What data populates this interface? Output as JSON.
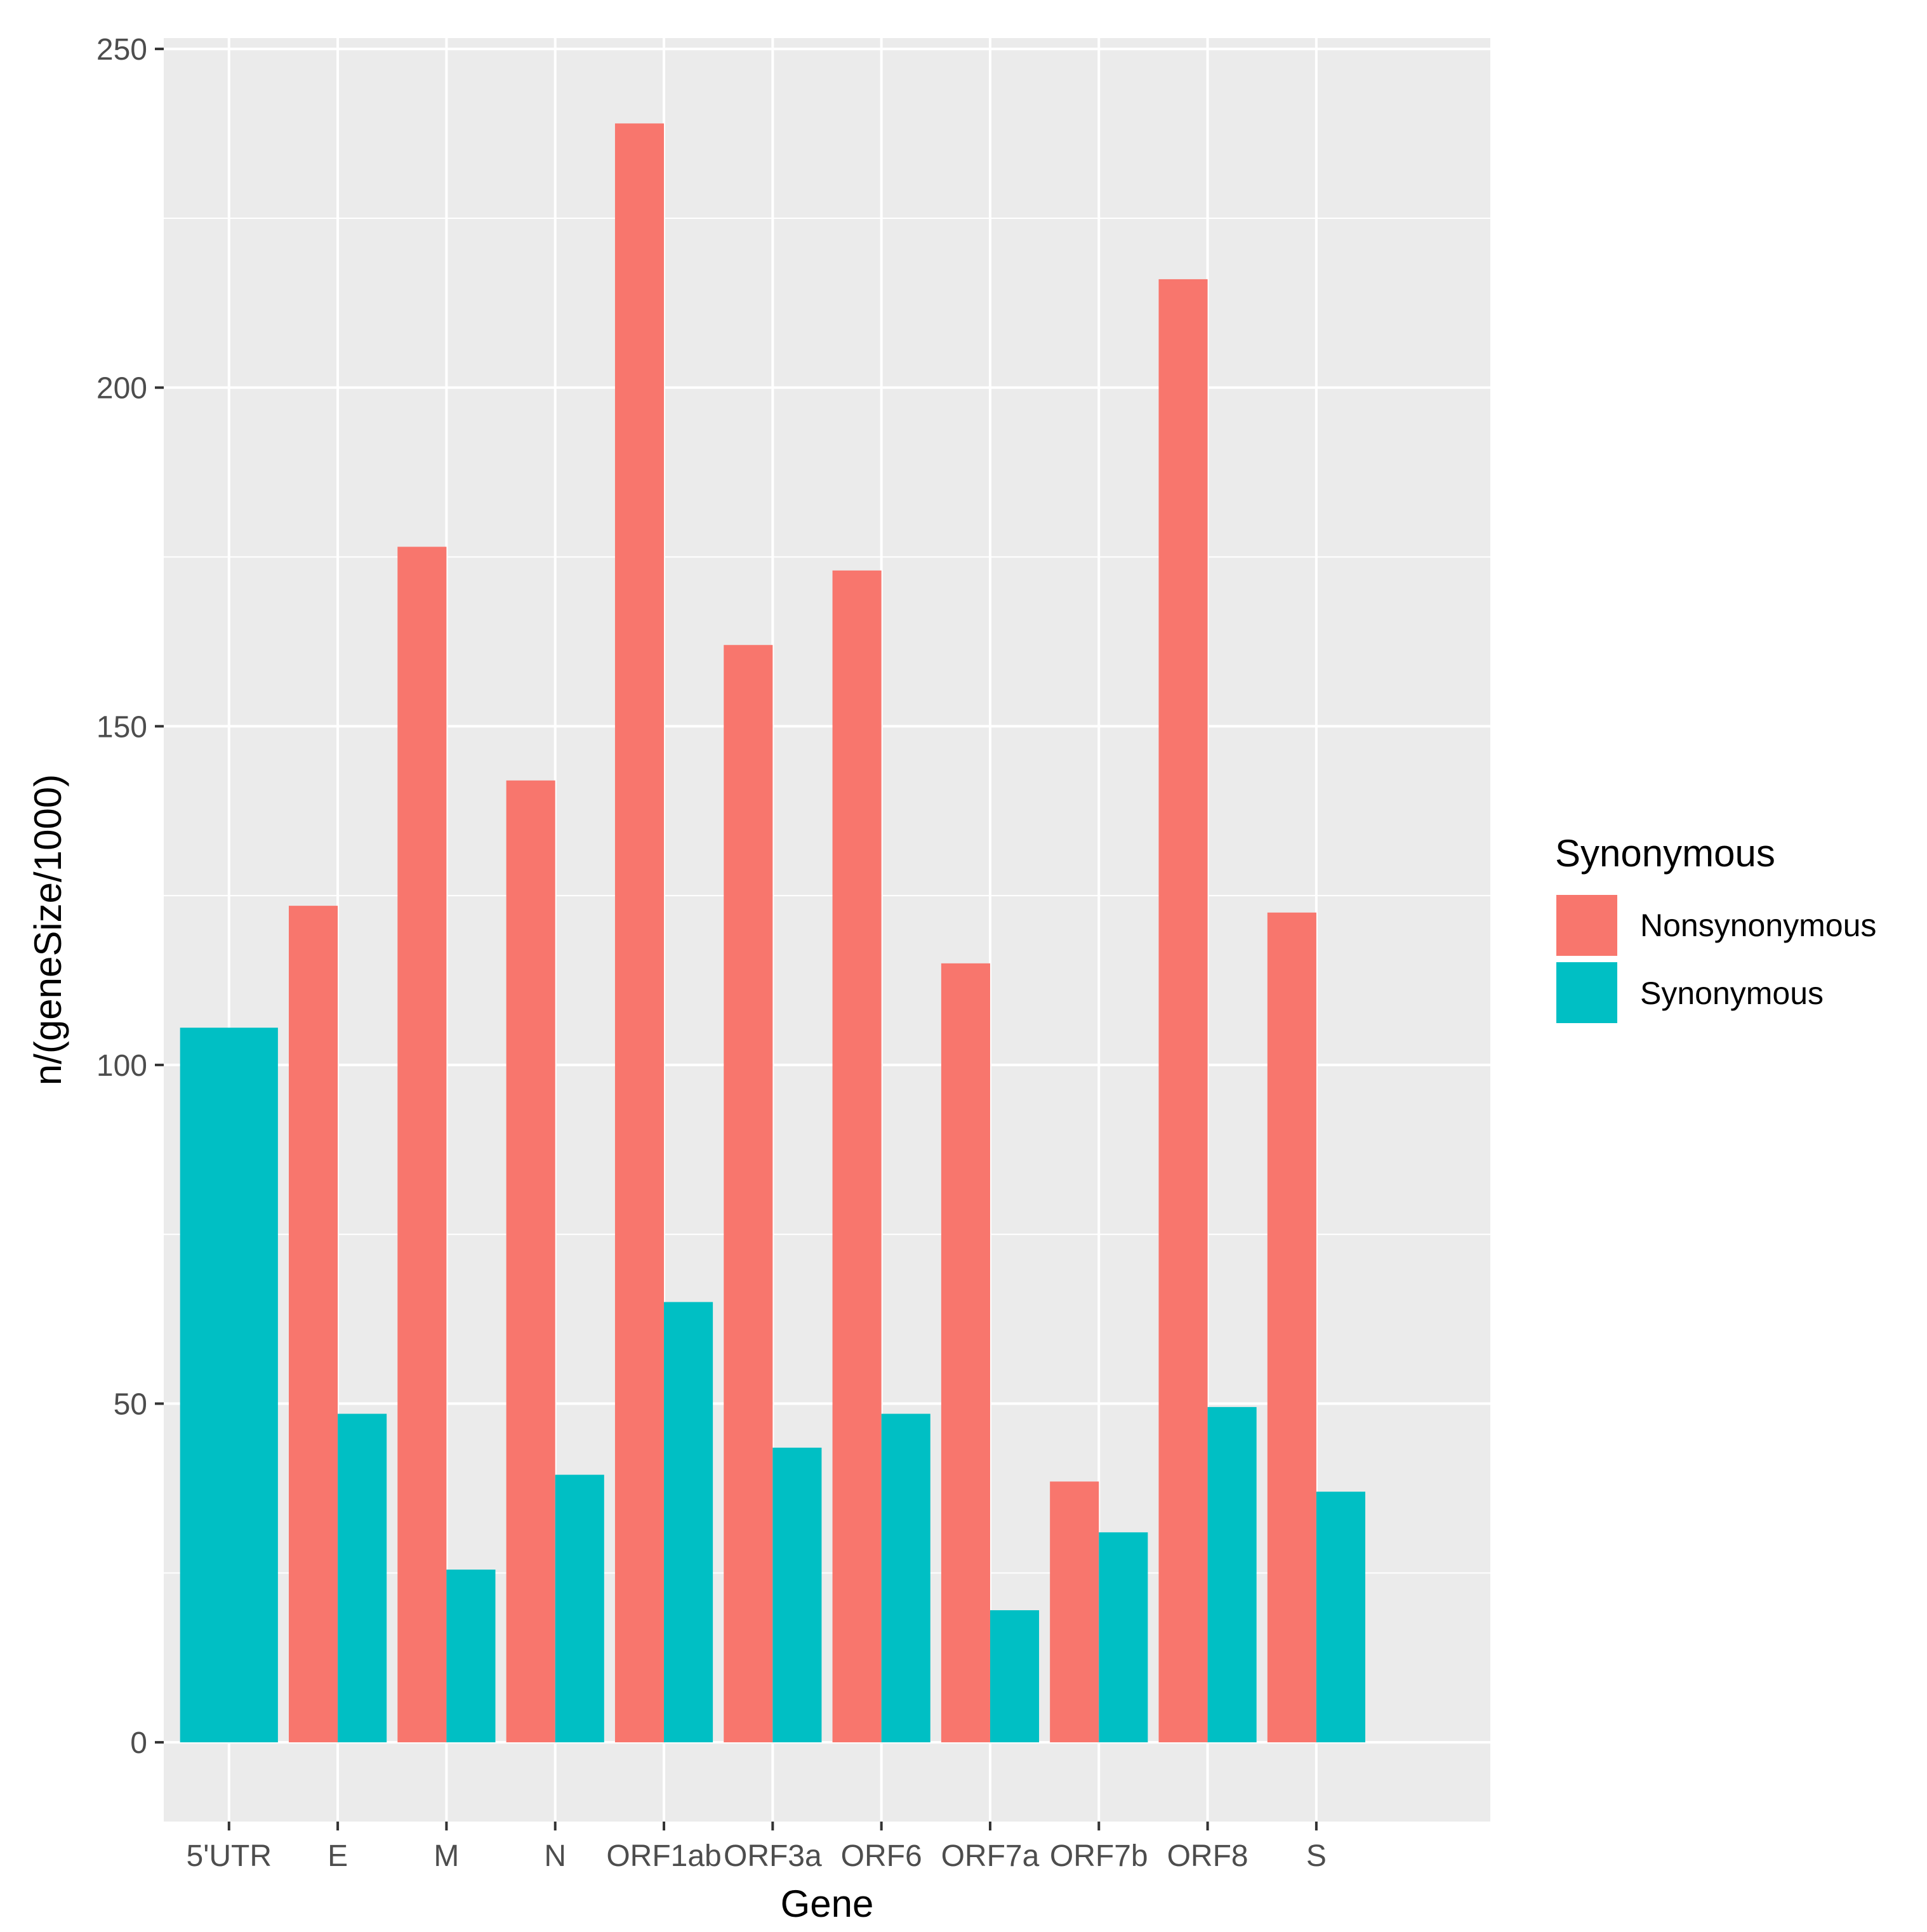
{
  "chart_data": {
    "type": "bar",
    "title": "",
    "xlabel": "Gene",
    "ylabel": "n/(geneSize/1000)",
    "categories": [
      "5'UTR",
      "E",
      "M",
      "N",
      "ORF1ab",
      "ORF3a",
      "ORF6",
      "ORF7a",
      "ORF7b",
      "ORF8",
      "S"
    ],
    "series": [
      {
        "name": "Nonsynonymous",
        "color": "#F8766D",
        "values": [
          null,
          123.5,
          176.5,
          142,
          239,
          162,
          173,
          115,
          38.5,
          216,
          122.5
        ]
      },
      {
        "name": "Synonymous",
        "color": "#00BFC4",
        "values": [
          105.5,
          48.5,
          25.5,
          39.5,
          65,
          43.5,
          48.5,
          19.5,
          31,
          49.5,
          37
        ]
      }
    ],
    "ylim": [
      -11.7,
      251.6
    ],
    "yticks": [
      0,
      50,
      100,
      150,
      200,
      250
    ],
    "grid": true,
    "legend": {
      "title": "Synonymous",
      "position": "right",
      "entries": [
        "Nonsynonymous",
        "Synonymous"
      ]
    },
    "panel_background": "#EBEBEB",
    "grid_color": "#FFFFFF",
    "axis_text_color": "#4D4D4D"
  }
}
